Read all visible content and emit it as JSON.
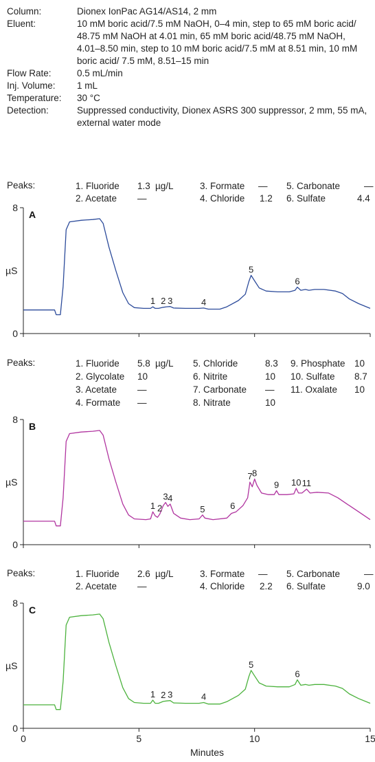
{
  "conditions": [
    {
      "label": "Column:",
      "value": "Dionex IonPac AG14/AS14, 2 mm"
    },
    {
      "label": "Eluent:",
      "value": "10 mM boric acid/7.5 mM NaOH, 0–4 min, step to 65 mM boric acid/ 48.75 mM NaOH at 4.01 min, 65 mM boric acid/48.75 mM NaOH, 4.01–8.50 min, step to 10 mM boric acid/7.5 mM  at 8.51 min, 10 mM boric acid/ 7.5 mM, 8.51–15 min"
    },
    {
      "label": "Flow Rate:",
      "value": "0.5 mL/min"
    },
    {
      "label": "Inj. Volume:",
      "value": "1 mL"
    },
    {
      "label": "Temperature:",
      "value": "30 °C"
    },
    {
      "label": "Detection:",
      "value": "Suppressed conductivity, Dionex ASRS 300 suppressor, 2 mm, 55 mA, external water mode"
    }
  ],
  "peaks_label": "Peaks:",
  "peak_tables": [
    {
      "unit": "µg/L",
      "items": [
        {
          "name": "1. Fluoride",
          "value": "1.3"
        },
        {
          "name": "2. Acetate",
          "value": "—"
        },
        {
          "name": "3. Formate",
          "value": "—"
        },
        {
          "name": "4. Chloride",
          "value": "1.2"
        },
        {
          "name": "5. Carbonate",
          "value": "—"
        },
        {
          "name": "6. Sulfate",
          "value": "4.4"
        }
      ]
    },
    {
      "unit": "µg/L",
      "items": [
        {
          "name": "1. Fluoride",
          "value": "5.8"
        },
        {
          "name": "2. Glycolate",
          "value": "10"
        },
        {
          "name": "3. Acetate",
          "value": "—"
        },
        {
          "name": "4. Formate",
          "value": "—"
        },
        {
          "name": "5. Chloride",
          "value": "8.3"
        },
        {
          "name": "6. Nitrite",
          "value": "10"
        },
        {
          "name": "7. Carbonate",
          "value": "—"
        },
        {
          "name": "8. Nitrate",
          "value": "10"
        },
        {
          "name": "9. Phosphate",
          "value": "10"
        },
        {
          "name": "10. Sulfate",
          "value": "8.7"
        },
        {
          "name": "11. Oxalate",
          "value": "10"
        }
      ]
    },
    {
      "unit": "µg/L",
      "items": [
        {
          "name": "1. Fluoride",
          "value": "2.6"
        },
        {
          "name": "2. Acetate",
          "value": "—"
        },
        {
          "name": "3. Formate",
          "value": "—"
        },
        {
          "name": "4. Chloride",
          "value": "2.2"
        },
        {
          "name": "5. Carbonate",
          "value": "—"
        },
        {
          "name": "6. Sulfate",
          "value": "9.0"
        }
      ]
    }
  ],
  "chart_data": {
    "type": "line",
    "xlabel": "Minutes",
    "ylabel": "µS",
    "xlim": [
      0,
      15
    ],
    "ylim": [
      0,
      8
    ],
    "xticks": [
      0,
      5,
      10,
      15
    ],
    "yticks": [
      0,
      8
    ],
    "panels": [
      {
        "letter": "A",
        "color": "#2b4a9a",
        "points": [
          [
            0,
            1.5
          ],
          [
            1.35,
            1.5
          ],
          [
            1.42,
            1.2
          ],
          [
            1.6,
            1.2
          ],
          [
            1.72,
            3.0
          ],
          [
            1.85,
            6.6
          ],
          [
            2.0,
            7.1
          ],
          [
            2.5,
            7.2
          ],
          [
            3.0,
            7.25
          ],
          [
            3.3,
            7.3
          ],
          [
            3.45,
            7.0
          ],
          [
            3.7,
            5.5
          ],
          [
            4.0,
            4.0
          ],
          [
            4.3,
            2.6
          ],
          [
            4.55,
            1.9
          ],
          [
            4.8,
            1.65
          ],
          [
            5.2,
            1.6
          ],
          [
            5.5,
            1.6
          ],
          [
            5.6,
            1.7
          ],
          [
            5.7,
            1.6
          ],
          [
            5.85,
            1.6
          ],
          [
            6.05,
            1.67
          ],
          [
            6.2,
            1.7
          ],
          [
            6.35,
            1.72
          ],
          [
            6.5,
            1.62
          ],
          [
            7.0,
            1.6
          ],
          [
            7.6,
            1.6
          ],
          [
            7.8,
            1.62
          ],
          [
            8.0,
            1.55
          ],
          [
            8.5,
            1.55
          ],
          [
            8.8,
            1.7
          ],
          [
            9.3,
            2.1
          ],
          [
            9.6,
            2.5
          ],
          [
            9.75,
            3.3
          ],
          [
            9.85,
            3.7
          ],
          [
            10.0,
            3.35
          ],
          [
            10.2,
            2.9
          ],
          [
            10.5,
            2.7
          ],
          [
            11.0,
            2.65
          ],
          [
            11.5,
            2.65
          ],
          [
            11.75,
            2.75
          ],
          [
            11.85,
            2.95
          ],
          [
            12.0,
            2.75
          ],
          [
            12.2,
            2.8
          ],
          [
            12.35,
            2.75
          ],
          [
            12.6,
            2.8
          ],
          [
            13.0,
            2.8
          ],
          [
            13.5,
            2.7
          ],
          [
            13.8,
            2.55
          ],
          [
            14.1,
            2.2
          ],
          [
            14.5,
            1.9
          ],
          [
            15.0,
            1.6
          ]
        ],
        "labels": [
          {
            "text": "1",
            "x": 5.6,
            "y": 1.7
          },
          {
            "text": "2",
            "x": 6.05,
            "y": 1.7
          },
          {
            "text": "3",
            "x": 6.35,
            "y": 1.7
          },
          {
            "text": "4",
            "x": 7.8,
            "y": 1.62
          },
          {
            "text": "5",
            "x": 9.85,
            "y": 3.7
          },
          {
            "text": "6",
            "x": 11.85,
            "y": 2.95
          }
        ]
      },
      {
        "letter": "B",
        "color": "#b0339f",
        "points": [
          [
            0,
            1.5
          ],
          [
            1.35,
            1.5
          ],
          [
            1.42,
            1.2
          ],
          [
            1.6,
            1.2
          ],
          [
            1.72,
            3.0
          ],
          [
            1.85,
            6.6
          ],
          [
            2.0,
            7.1
          ],
          [
            2.5,
            7.2
          ],
          [
            3.0,
            7.25
          ],
          [
            3.3,
            7.3
          ],
          [
            3.45,
            7.0
          ],
          [
            3.7,
            5.5
          ],
          [
            4.0,
            4.0
          ],
          [
            4.3,
            2.6
          ],
          [
            4.55,
            1.9
          ],
          [
            4.8,
            1.65
          ],
          [
            5.3,
            1.6
          ],
          [
            5.5,
            1.65
          ],
          [
            5.6,
            2.1
          ],
          [
            5.7,
            1.85
          ],
          [
            5.8,
            1.75
          ],
          [
            5.9,
            1.95
          ],
          [
            6.05,
            2.5
          ],
          [
            6.15,
            2.7
          ],
          [
            6.25,
            2.45
          ],
          [
            6.35,
            2.6
          ],
          [
            6.5,
            2.0
          ],
          [
            6.8,
            1.7
          ],
          [
            7.2,
            1.6
          ],
          [
            7.6,
            1.65
          ],
          [
            7.75,
            1.9
          ],
          [
            7.85,
            1.7
          ],
          [
            8.2,
            1.6
          ],
          [
            8.8,
            1.7
          ],
          [
            9.0,
            2.0
          ],
          [
            9.2,
            2.1
          ],
          [
            9.5,
            2.5
          ],
          [
            9.7,
            3.0
          ],
          [
            9.8,
            4.0
          ],
          [
            9.9,
            3.7
          ],
          [
            10.0,
            4.2
          ],
          [
            10.1,
            3.8
          ],
          [
            10.3,
            3.3
          ],
          [
            10.6,
            3.2
          ],
          [
            10.85,
            3.2
          ],
          [
            10.95,
            3.45
          ],
          [
            11.05,
            3.2
          ],
          [
            11.4,
            3.2
          ],
          [
            11.7,
            3.25
          ],
          [
            11.8,
            3.6
          ],
          [
            11.9,
            3.3
          ],
          [
            12.05,
            3.3
          ],
          [
            12.25,
            3.55
          ],
          [
            12.4,
            3.3
          ],
          [
            12.7,
            3.35
          ],
          [
            13.2,
            3.3
          ],
          [
            13.6,
            3.0
          ],
          [
            14.0,
            2.6
          ],
          [
            14.5,
            2.1
          ],
          [
            15.0,
            1.6
          ]
        ],
        "labels": [
          {
            "text": "1",
            "x": 5.6,
            "y": 2.1
          },
          {
            "text": "2",
            "x": 5.9,
            "y": 1.95
          },
          {
            "text": "3",
            "x": 6.15,
            "y": 2.7
          },
          {
            "text": "4",
            "x": 6.35,
            "y": 2.6
          },
          {
            "text": "5",
            "x": 7.75,
            "y": 1.9
          },
          {
            "text": "6",
            "x": 9.05,
            "y": 2.1
          },
          {
            "text": "7",
            "x": 9.8,
            "y": 4.0
          },
          {
            "text": "8",
            "x": 10.0,
            "y": 4.2
          },
          {
            "text": "9",
            "x": 10.95,
            "y": 3.45
          },
          {
            "text": "10",
            "x": 11.8,
            "y": 3.6
          },
          {
            "text": "11",
            "x": 12.25,
            "y": 3.55
          }
        ]
      },
      {
        "letter": "C",
        "color": "#4bb23c",
        "points": [
          [
            0,
            1.5
          ],
          [
            1.35,
            1.5
          ],
          [
            1.42,
            1.2
          ],
          [
            1.6,
            1.2
          ],
          [
            1.72,
            3.0
          ],
          [
            1.85,
            6.6
          ],
          [
            2.0,
            7.1
          ],
          [
            2.5,
            7.2
          ],
          [
            3.0,
            7.25
          ],
          [
            3.3,
            7.3
          ],
          [
            3.45,
            7.0
          ],
          [
            3.7,
            5.5
          ],
          [
            4.0,
            4.0
          ],
          [
            4.3,
            2.6
          ],
          [
            4.55,
            1.9
          ],
          [
            4.8,
            1.65
          ],
          [
            5.2,
            1.6
          ],
          [
            5.5,
            1.6
          ],
          [
            5.6,
            1.8
          ],
          [
            5.7,
            1.6
          ],
          [
            5.85,
            1.6
          ],
          [
            6.05,
            1.72
          ],
          [
            6.2,
            1.75
          ],
          [
            6.35,
            1.77
          ],
          [
            6.5,
            1.62
          ],
          [
            7.0,
            1.6
          ],
          [
            7.6,
            1.6
          ],
          [
            7.8,
            1.65
          ],
          [
            8.0,
            1.55
          ],
          [
            8.5,
            1.55
          ],
          [
            8.8,
            1.7
          ],
          [
            9.3,
            2.1
          ],
          [
            9.6,
            2.5
          ],
          [
            9.75,
            3.3
          ],
          [
            9.85,
            3.7
          ],
          [
            10.0,
            3.35
          ],
          [
            10.2,
            2.9
          ],
          [
            10.5,
            2.7
          ],
          [
            11.0,
            2.65
          ],
          [
            11.5,
            2.65
          ],
          [
            11.75,
            2.8
          ],
          [
            11.85,
            3.1
          ],
          [
            12.0,
            2.75
          ],
          [
            12.2,
            2.8
          ],
          [
            12.35,
            2.75
          ],
          [
            12.6,
            2.8
          ],
          [
            13.0,
            2.8
          ],
          [
            13.5,
            2.7
          ],
          [
            13.8,
            2.55
          ],
          [
            14.1,
            2.2
          ],
          [
            14.5,
            1.9
          ],
          [
            15.0,
            1.6
          ]
        ],
        "labels": [
          {
            "text": "1",
            "x": 5.6,
            "y": 1.8
          },
          {
            "text": "2",
            "x": 6.05,
            "y": 1.75
          },
          {
            "text": "3",
            "x": 6.35,
            "y": 1.77
          },
          {
            "text": "4",
            "x": 7.8,
            "y": 1.65
          },
          {
            "text": "5",
            "x": 9.85,
            "y": 3.7
          },
          {
            "text": "6",
            "x": 11.85,
            "y": 3.1
          }
        ]
      }
    ]
  }
}
